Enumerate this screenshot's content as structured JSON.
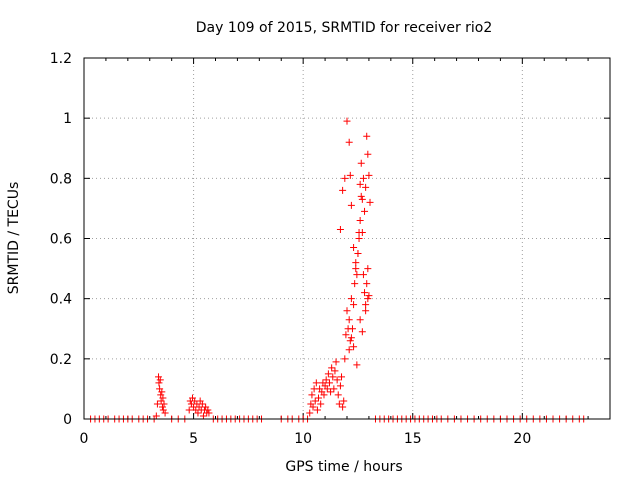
{
  "chart_data": {
    "type": "scatter",
    "title": "Day 109 of 2015, SRMTID for receiver rio2",
    "xlabel": "GPS time / hours",
    "ylabel": "SRMTID / TECUs",
    "xlim": [
      0,
      24
    ],
    "ylim": [
      0,
      1.2
    ],
    "xticks": [
      0,
      5,
      10,
      15,
      20
    ],
    "yticks": [
      0,
      0.2,
      0.4,
      0.6,
      0.8,
      1,
      1.2
    ],
    "xtick_labels": [
      "0",
      "5",
      "10",
      "15",
      "20"
    ],
    "ytick_labels": [
      "0",
      "0.2",
      "0.4",
      "0.6",
      "0.8",
      "1",
      "1.2"
    ],
    "grid": true,
    "marker": "+",
    "series": [
      {
        "name": "rio2",
        "color": "#ff0000",
        "x": [
          0.3,
          0.5,
          0.7,
          0.9,
          1.1,
          1.4,
          1.6,
          1.8,
          2.0,
          2.2,
          2.5,
          2.7,
          2.9,
          3.2,
          3.3,
          3.35,
          3.4,
          3.42,
          3.45,
          3.48,
          3.5,
          3.52,
          3.55,
          3.58,
          3.6,
          3.62,
          3.65,
          3.7,
          4.0,
          4.3,
          4.6,
          4.8,
          4.85,
          4.9,
          4.95,
          5.0,
          5.05,
          5.1,
          5.15,
          5.2,
          5.25,
          5.3,
          5.35,
          5.4,
          5.45,
          5.5,
          5.55,
          5.6,
          5.65,
          5.7,
          5.9,
          6.1,
          6.3,
          6.5,
          6.7,
          6.9,
          7.1,
          7.3,
          7.5,
          7.7,
          7.9,
          8.1,
          9.0,
          9.3,
          9.5,
          9.8,
          10.0,
          10.2,
          10.3,
          10.35,
          10.4,
          10.45,
          10.5,
          10.55,
          10.6,
          10.65,
          10.7,
          10.75,
          10.8,
          10.85,
          10.9,
          10.95,
          11.0,
          11.05,
          11.1,
          11.15,
          11.2,
          11.25,
          11.3,
          11.35,
          11.4,
          11.45,
          11.5,
          11.55,
          11.6,
          11.65,
          11.7,
          11.75,
          11.8,
          11.85,
          11.9,
          11.95,
          12.0,
          12.05,
          12.1,
          12.15,
          12.2,
          12.25,
          12.3,
          12.35,
          12.4,
          12.45,
          12.5,
          12.55,
          12.6,
          12.65,
          12.7,
          12.75,
          12.8,
          12.85,
          12.9,
          12.95,
          13.0,
          11.7,
          11.8,
          11.9,
          12.0,
          12.1,
          12.15,
          12.2,
          12.3,
          12.4,
          12.5,
          12.55,
          12.6,
          12.65,
          12.7,
          12.75,
          12.8,
          12.85,
          12.9,
          12.95,
          13.0,
          13.05,
          12.1,
          12.2,
          12.3,
          12.45,
          12.6,
          12.7,
          12.85,
          12.95,
          13.3,
          13.5,
          13.7,
          13.9,
          14.1,
          14.3,
          14.5,
          14.7,
          14.9,
          15.1,
          15.3,
          15.5,
          15.7,
          15.9,
          16.1,
          16.3,
          16.6,
          16.9,
          17.2,
          17.5,
          17.8,
          18.1,
          18.4,
          18.7,
          19.0,
          19.3,
          19.6,
          19.9,
          20.2,
          20.5,
          20.8,
          21.1,
          21.4,
          21.7,
          22.0,
          22.3,
          22.6,
          22.8
        ],
        "y": [
          0,
          0,
          0,
          0,
          0,
          0,
          0,
          0,
          0,
          0,
          0,
          0,
          0,
          0,
          0.01,
          0.05,
          0.14,
          0.12,
          0.1,
          0.13,
          0.08,
          0.06,
          0.09,
          0.04,
          0.07,
          0.03,
          0.05,
          0.02,
          0,
          0,
          0,
          0.03,
          0.06,
          0.05,
          0.07,
          0.04,
          0.06,
          0.03,
          0.05,
          0.02,
          0.04,
          0.06,
          0.03,
          0.05,
          0.01,
          0.03,
          0.04,
          0.02,
          0.03,
          0.02,
          0,
          0,
          0,
          0,
          0,
          0,
          0,
          0,
          0,
          0,
          0,
          0,
          0,
          0,
          0,
          0,
          0,
          0,
          0.02,
          0.05,
          0.08,
          0.04,
          0.1,
          0.06,
          0.12,
          0.03,
          0.07,
          0.1,
          0.05,
          0.09,
          0.12,
          0.08,
          0.11,
          0.13,
          0.1,
          0.15,
          0.12,
          0.09,
          0.17,
          0.14,
          0.1,
          0.16,
          0.19,
          0.13,
          0.08,
          0.05,
          0.11,
          0.14,
          0.04,
          0.06,
          0.2,
          0.28,
          0.36,
          0.3,
          0.33,
          0.26,
          0.4,
          0.3,
          0.38,
          0.45,
          0.5,
          0.48,
          0.55,
          0.62,
          0.66,
          0.74,
          0.62,
          0.48,
          0.42,
          0.38,
          0.45,
          0.5,
          0.41,
          0.63,
          0.76,
          0.8,
          0.99,
          0.92,
          0.81,
          0.71,
          0.57,
          0.52,
          0.55,
          0.6,
          0.78,
          0.85,
          0.73,
          0.8,
          0.69,
          0.77,
          0.94,
          0.88,
          0.81,
          0.72,
          0.23,
          0.27,
          0.24,
          0.18,
          0.33,
          0.29,
          0.36,
          0.4,
          0,
          0,
          0,
          0,
          0,
          0,
          0,
          0,
          0,
          0,
          0,
          0,
          0,
          0,
          0,
          0,
          0,
          0,
          0,
          0,
          0,
          0,
          0,
          0,
          0,
          0,
          0,
          0,
          0,
          0,
          0,
          0,
          0,
          0,
          0,
          0,
          0,
          0
        ]
      }
    ]
  }
}
